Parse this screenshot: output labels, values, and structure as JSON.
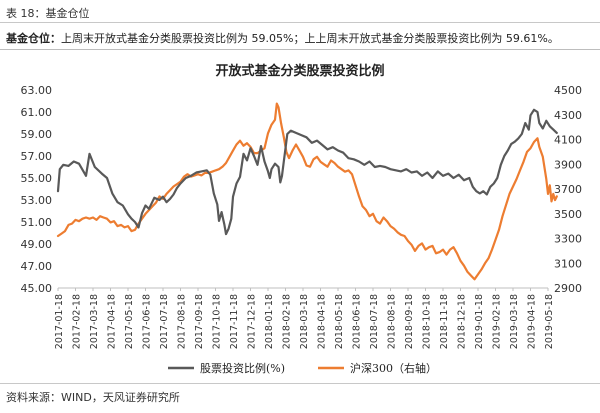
{
  "header": {
    "table_label": "表 18：基金仓位"
  },
  "summary": {
    "lead": "基金仓位：",
    "text": "上周末开放式基金分类股票投资比例为 59.05%；上上周末开放式基金分类股票投资比例为 59.61%。"
  },
  "footer": {
    "source": "资料来源：WIND，天风证券研究所"
  },
  "chart_data": {
    "type": "line",
    "title": "开放式基金分类股票投资比例",
    "left_axis": {
      "min": 45,
      "max": 63,
      "ticks": [
        "63.00",
        "61.00",
        "59.00",
        "57.00",
        "55.00",
        "53.00",
        "51.00",
        "49.00",
        "47.00",
        "45.00"
      ]
    },
    "right_axis": {
      "min": 2900,
      "max": 4500,
      "ticks": [
        "4500",
        "4300",
        "4100",
        "3900",
        "3700",
        "3500",
        "3300",
        "3100",
        "2900"
      ]
    },
    "x_ticks": [
      "2017-01-18",
      "2017-02-18",
      "2017-03-18",
      "2017-04-18",
      "2017-05-18",
      "2017-06-18",
      "2017-07-18",
      "2017-08-18",
      "2017-09-18",
      "2017-10-18",
      "2017-11-18",
      "2017-12-18",
      "2018-01-18",
      "2018-02-18",
      "2018-03-18",
      "2018-04-18",
      "2018-05-18",
      "2018-06-18",
      "2018-07-18",
      "2018-08-18",
      "2018-09-18",
      "2018-10-18",
      "2018-11-18",
      "2018-12-18",
      "2019-01-18",
      "2019-02-18",
      "2019-03-18",
      "2019-04-18",
      "2019-05-18"
    ],
    "legend": {
      "placement": "bottom-center"
    },
    "series": [
      {
        "name": "股票投资比例(%)",
        "axis": "left",
        "color": "#595959",
        "points": [
          [
            0,
            53.8
          ],
          [
            0.1,
            55.8
          ],
          [
            0.3,
            56.2
          ],
          [
            0.6,
            56.1
          ],
          [
            0.9,
            56.5
          ],
          [
            1.2,
            56.3
          ],
          [
            1.6,
            55.2
          ],
          [
            1.8,
            57.2
          ],
          [
            2.1,
            56.0
          ],
          [
            2.5,
            55.4
          ],
          [
            2.8,
            55.0
          ],
          [
            3.1,
            53.6
          ],
          [
            3.4,
            52.8
          ],
          [
            3.7,
            52.5
          ],
          [
            4.0,
            51.7
          ],
          [
            4.2,
            51.3
          ],
          [
            4.4,
            51.0
          ],
          [
            4.6,
            50.5
          ],
          [
            4.8,
            51.8
          ],
          [
            5.0,
            52.5
          ],
          [
            5.2,
            52.2
          ],
          [
            5.5,
            53.2
          ],
          [
            5.8,
            53.0
          ],
          [
            6.0,
            53.3
          ],
          [
            6.2,
            52.8
          ],
          [
            6.4,
            53.1
          ],
          [
            6.6,
            53.5
          ],
          [
            6.8,
            54.1
          ],
          [
            7.0,
            54.5
          ],
          [
            7.3,
            55.0
          ],
          [
            7.6,
            55.2
          ],
          [
            7.9,
            55.5
          ],
          [
            8.2,
            55.6
          ],
          [
            8.5,
            55.7
          ],
          [
            8.7,
            55.3
          ],
          [
            8.9,
            53.6
          ],
          [
            9.1,
            52.6
          ],
          [
            9.2,
            51.1
          ],
          [
            9.35,
            51.9
          ],
          [
            9.5,
            50.8
          ],
          [
            9.6,
            49.9
          ],
          [
            9.75,
            50.4
          ],
          [
            9.9,
            51.3
          ],
          [
            10.0,
            53.3
          ],
          [
            10.2,
            54.5
          ],
          [
            10.4,
            55.1
          ],
          [
            10.6,
            57.2
          ],
          [
            10.8,
            56.6
          ],
          [
            11.0,
            57.7
          ],
          [
            11.2,
            57.0
          ],
          [
            11.4,
            56.2
          ],
          [
            11.6,
            57.9
          ],
          [
            11.8,
            56.5
          ],
          [
            12.0,
            55.6
          ],
          [
            12.1,
            55.0
          ],
          [
            12.2,
            55.8
          ],
          [
            12.4,
            56.3
          ],
          [
            12.6,
            56.0
          ],
          [
            12.7,
            54.6
          ],
          [
            12.8,
            55.2
          ],
          [
            12.9,
            56.5
          ],
          [
            13.0,
            57.7
          ],
          [
            13.1,
            59.0
          ],
          [
            13.3,
            59.3
          ],
          [
            13.6,
            59.1
          ],
          [
            13.9,
            58.9
          ],
          [
            14.2,
            58.7
          ],
          [
            14.5,
            58.2
          ],
          [
            14.8,
            58.4
          ],
          [
            15.1,
            58.0
          ],
          [
            15.4,
            57.6
          ],
          [
            15.7,
            57.8
          ],
          [
            16.0,
            57.5
          ],
          [
            16.3,
            57.3
          ],
          [
            16.6,
            56.8
          ],
          [
            16.9,
            56.7
          ],
          [
            17.2,
            56.5
          ],
          [
            17.5,
            56.2
          ],
          [
            17.8,
            56.5
          ],
          [
            18.1,
            56.0
          ],
          [
            18.4,
            56.1
          ],
          [
            18.7,
            56.0
          ],
          [
            19.0,
            55.8
          ],
          [
            19.3,
            55.7
          ],
          [
            19.6,
            55.6
          ],
          [
            19.9,
            55.8
          ],
          [
            20.2,
            55.5
          ],
          [
            20.5,
            55.6
          ],
          [
            20.8,
            55.2
          ],
          [
            21.1,
            55.5
          ],
          [
            21.4,
            55.0
          ],
          [
            21.7,
            55.6
          ],
          [
            22.0,
            55.2
          ],
          [
            22.3,
            55.4
          ],
          [
            22.6,
            55.0
          ],
          [
            22.9,
            55.3
          ],
          [
            23.2,
            54.8
          ],
          [
            23.5,
            55.0
          ],
          [
            23.7,
            54.2
          ],
          [
            23.9,
            53.8
          ],
          [
            24.1,
            53.6
          ],
          [
            24.3,
            53.8
          ],
          [
            24.5,
            53.5
          ],
          [
            24.7,
            54.2
          ],
          [
            24.9,
            54.5
          ],
          [
            25.1,
            55.0
          ],
          [
            25.3,
            56.2
          ],
          [
            25.5,
            57.0
          ],
          [
            25.7,
            57.5
          ],
          [
            25.9,
            58.1
          ],
          [
            26.1,
            58.3
          ],
          [
            26.3,
            58.6
          ],
          [
            26.5,
            59.0
          ],
          [
            26.7,
            60.0
          ],
          [
            26.9,
            59.4
          ],
          [
            27.0,
            60.7
          ],
          [
            27.2,
            61.2
          ],
          [
            27.4,
            61.0
          ],
          [
            27.5,
            60.0
          ],
          [
            27.7,
            59.5
          ],
          [
            27.9,
            60.2
          ],
          [
            28.1,
            59.7
          ],
          [
            28.3,
            59.4
          ],
          [
            28.5,
            59.1
          ]
        ]
      },
      {
        "name": "沪深300（右轴）",
        "axis": "right",
        "color": "#ED7D31",
        "points": [
          [
            0,
            3320
          ],
          [
            0.2,
            3340
          ],
          [
            0.4,
            3360
          ],
          [
            0.6,
            3410
          ],
          [
            0.8,
            3420
          ],
          [
            1.0,
            3450
          ],
          [
            1.2,
            3440
          ],
          [
            1.4,
            3460
          ],
          [
            1.6,
            3470
          ],
          [
            1.8,
            3460
          ],
          [
            2.0,
            3470
          ],
          [
            2.2,
            3450
          ],
          [
            2.4,
            3480
          ],
          [
            2.6,
            3470
          ],
          [
            2.8,
            3460
          ],
          [
            3.0,
            3430
          ],
          [
            3.2,
            3440
          ],
          [
            3.4,
            3400
          ],
          [
            3.6,
            3410
          ],
          [
            3.8,
            3390
          ],
          [
            4.0,
            3400
          ],
          [
            4.2,
            3360
          ],
          [
            4.4,
            3370
          ],
          [
            4.6,
            3420
          ],
          [
            4.8,
            3460
          ],
          [
            5.0,
            3500
          ],
          [
            5.2,
            3530
          ],
          [
            5.4,
            3560
          ],
          [
            5.6,
            3590
          ],
          [
            5.8,
            3640
          ],
          [
            6.0,
            3620
          ],
          [
            6.2,
            3660
          ],
          [
            6.4,
            3690
          ],
          [
            6.6,
            3720
          ],
          [
            6.8,
            3740
          ],
          [
            7.0,
            3760
          ],
          [
            7.2,
            3800
          ],
          [
            7.4,
            3820
          ],
          [
            7.6,
            3800
          ],
          [
            7.8,
            3810
          ],
          [
            8.0,
            3820
          ],
          [
            8.2,
            3810
          ],
          [
            8.4,
            3830
          ],
          [
            8.6,
            3830
          ],
          [
            8.8,
            3840
          ],
          [
            9.0,
            3850
          ],
          [
            9.2,
            3860
          ],
          [
            9.4,
            3880
          ],
          [
            9.6,
            3910
          ],
          [
            9.8,
            3960
          ],
          [
            10.0,
            4010
          ],
          [
            10.2,
            4060
          ],
          [
            10.4,
            4090
          ],
          [
            10.6,
            4050
          ],
          [
            10.8,
            4070
          ],
          [
            11.0,
            4040
          ],
          [
            11.2,
            3990
          ],
          [
            11.4,
            3990
          ],
          [
            11.6,
            4010
          ],
          [
            11.8,
            4030
          ],
          [
            12.0,
            4150
          ],
          [
            12.2,
            4220
          ],
          [
            12.4,
            4260
          ],
          [
            12.5,
            4390
          ],
          [
            12.6,
            4360
          ],
          [
            12.75,
            4230
          ],
          [
            12.9,
            4120
          ],
          [
            13.05,
            4000
          ],
          [
            13.2,
            3950
          ],
          [
            13.4,
            4010
          ],
          [
            13.6,
            4060
          ],
          [
            13.8,
            4010
          ],
          [
            14.0,
            3960
          ],
          [
            14.2,
            3890
          ],
          [
            14.4,
            3880
          ],
          [
            14.6,
            3940
          ],
          [
            14.8,
            3960
          ],
          [
            15.0,
            3920
          ],
          [
            15.2,
            3900
          ],
          [
            15.4,
            3880
          ],
          [
            15.6,
            3930
          ],
          [
            15.8,
            3910
          ],
          [
            16.0,
            3880
          ],
          [
            16.2,
            3860
          ],
          [
            16.4,
            3840
          ],
          [
            16.6,
            3850
          ],
          [
            16.8,
            3820
          ],
          [
            17.0,
            3730
          ],
          [
            17.2,
            3640
          ],
          [
            17.4,
            3560
          ],
          [
            17.6,
            3530
          ],
          [
            17.8,
            3480
          ],
          [
            18.0,
            3500
          ],
          [
            18.2,
            3440
          ],
          [
            18.4,
            3420
          ],
          [
            18.6,
            3470
          ],
          [
            18.8,
            3440
          ],
          [
            19.0,
            3400
          ],
          [
            19.2,
            3380
          ],
          [
            19.4,
            3350
          ],
          [
            19.6,
            3330
          ],
          [
            19.8,
            3320
          ],
          [
            20.0,
            3280
          ],
          [
            20.2,
            3250
          ],
          [
            20.4,
            3200
          ],
          [
            20.6,
            3240
          ],
          [
            20.8,
            3260
          ],
          [
            21.0,
            3210
          ],
          [
            21.2,
            3230
          ],
          [
            21.4,
            3240
          ],
          [
            21.6,
            3180
          ],
          [
            21.8,
            3190
          ],
          [
            22.0,
            3210
          ],
          [
            22.2,
            3170
          ],
          [
            22.4,
            3210
          ],
          [
            22.6,
            3230
          ],
          [
            22.8,
            3180
          ],
          [
            23.0,
            3120
          ],
          [
            23.2,
            3080
          ],
          [
            23.4,
            3030
          ],
          [
            23.6,
            3000
          ],
          [
            23.8,
            2970
          ],
          [
            24.0,
            3010
          ],
          [
            24.2,
            3050
          ],
          [
            24.4,
            3100
          ],
          [
            24.6,
            3140
          ],
          [
            24.8,
            3210
          ],
          [
            25.0,
            3290
          ],
          [
            25.2,
            3370
          ],
          [
            25.4,
            3480
          ],
          [
            25.6,
            3570
          ],
          [
            25.8,
            3660
          ],
          [
            26.0,
            3720
          ],
          [
            26.2,
            3780
          ],
          [
            26.4,
            3850
          ],
          [
            26.6,
            3920
          ],
          [
            26.8,
            4000
          ],
          [
            27.0,
            4030
          ],
          [
            27.2,
            4080
          ],
          [
            27.4,
            4110
          ],
          [
            27.5,
            4040
          ],
          [
            27.7,
            3960
          ],
          [
            27.9,
            3780
          ],
          [
            28.0,
            3660
          ],
          [
            28.1,
            3730
          ],
          [
            28.2,
            3600
          ],
          [
            28.3,
            3660
          ],
          [
            28.4,
            3610
          ],
          [
            28.5,
            3640
          ]
        ]
      }
    ]
  }
}
